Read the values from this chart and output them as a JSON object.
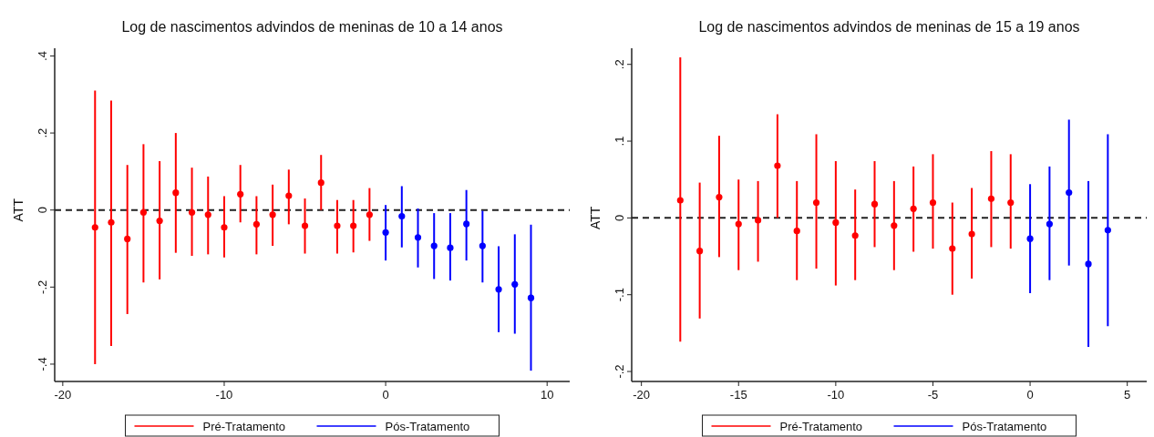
{
  "chart_data": [
    {
      "type": "scatter",
      "title": "Log de nascimentos advindos de meninas de 10 a 14 anos",
      "ylabel": "ATT",
      "marker": "circle",
      "legend": "bottom",
      "xlim": [
        -20.5,
        11.4
      ],
      "xticks": [
        -20,
        -10,
        0,
        10
      ],
      "ylim": [
        -0.445,
        0.42
      ],
      "yticks": [
        {
          "value": -0.4,
          "label": "-.4"
        },
        {
          "value": -0.2,
          "label": "-.2"
        },
        0,
        {
          "value": 0.2,
          "label": ".2"
        },
        {
          "value": 0.4,
          "label": ".4"
        }
      ],
      "ref_lines": [
        {
          "axis": "y",
          "value": 0,
          "line_style": "dashed",
          "color": "#222222"
        }
      ],
      "series": [
        {
          "name": "Pré-Tratamento",
          "color": "#ff0000",
          "x": [
            -18,
            -17,
            -16,
            -15,
            -14,
            -13,
            -12,
            -11,
            -10,
            -9,
            -8,
            -7,
            -6,
            -5,
            -4,
            -3,
            -2,
            -1
          ],
          "values": [
            -0.045,
            -0.032,
            -0.075,
            -0.006,
            -0.028,
            0.045,
            -0.006,
            -0.012,
            -0.045,
            0.041,
            -0.037,
            -0.012,
            0.037,
            -0.041,
            0.071,
            -0.041,
            -0.041,
            -0.012
          ],
          "errors": [
            [
              -0.4,
              0.31
            ],
            [
              -0.353,
              0.284
            ],
            [
              -0.27,
              0.117
            ],
            [
              -0.188,
              0.171
            ],
            [
              -0.18,
              0.127
            ],
            [
              -0.111,
              0.2
            ],
            [
              -0.119,
              0.11
            ],
            [
              -0.115,
              0.087
            ],
            [
              -0.123,
              0.036
            ],
            [
              -0.032,
              0.117
            ],
            [
              -0.115,
              0.036
            ],
            [
              -0.093,
              0.066
            ],
            [
              -0.037,
              0.105
            ],
            [
              -0.113,
              0.03
            ],
            [
              0,
              0.143
            ],
            [
              -0.113,
              0.026
            ],
            [
              -0.11,
              0.026
            ],
            [
              -0.08,
              0.057
            ]
          ]
        },
        {
          "name": "Pós-Tratamento",
          "color": "#0000ff",
          "x": [
            0,
            1,
            2,
            3,
            4,
            5,
            6,
            7,
            8,
            9
          ],
          "values": [
            -0.058,
            -0.016,
            -0.071,
            -0.093,
            -0.098,
            -0.036,
            -0.093,
            -0.206,
            -0.193,
            -0.228
          ],
          "errors": [
            [
              -0.131,
              0.013
            ],
            [
              -0.097,
              0.062
            ],
            [
              -0.149,
              0.004
            ],
            [
              -0.179,
              -0.008
            ],
            [
              -0.183,
              -0.008
            ],
            [
              -0.131,
              0.052
            ],
            [
              -0.188,
              -0.002
            ],
            [
              -0.317,
              -0.094
            ],
            [
              -0.321,
              -0.063
            ],
            [
              -0.417,
              -0.038
            ]
          ]
        }
      ]
    },
    {
      "type": "scatter",
      "title": "Log de nascimentos advindos de meninas de 15 a 19 anos",
      "ylabel": "ATT",
      "marker": "circle",
      "legend": "bottom",
      "xlim": [
        -20.5,
        6
      ],
      "xticks": [
        -20,
        -15,
        -10,
        -5,
        0,
        5
      ],
      "ylim": [
        -0.213,
        0.221
      ],
      "yticks": [
        {
          "value": -0.2,
          "label": "-.2"
        },
        {
          "value": -0.1,
          "label": "-.1"
        },
        0,
        {
          "value": 0.1,
          "label": ".1"
        },
        {
          "value": 0.2,
          "label": ".2"
        }
      ],
      "ref_lines": [
        {
          "axis": "y",
          "value": 0,
          "line_style": "dashed",
          "color": "#222222"
        }
      ],
      "series": [
        {
          "name": "Pré-Tratamento",
          "color": "#ff0000",
          "x": [
            -18,
            -17,
            -16,
            -15,
            -14,
            -13,
            -12,
            -11,
            -10,
            -9,
            -8,
            -7,
            -6,
            -5,
            -4,
            -3,
            -2,
            -1
          ],
          "values": [
            0.023,
            -0.043,
            0.027,
            -0.008,
            -0.003,
            0.068,
            -0.017,
            0.02,
            -0.006,
            -0.023,
            0.018,
            -0.01,
            0.012,
            0.02,
            -0.04,
            -0.021,
            0.025,
            0.02
          ],
          "errors": [
            [
              -0.161,
              0.209
            ],
            [
              -0.131,
              0.046
            ],
            [
              -0.051,
              0.107
            ],
            [
              -0.068,
              0.05
            ],
            [
              -0.057,
              0.048
            ],
            [
              0,
              0.135
            ],
            [
              -0.081,
              0.048
            ],
            [
              -0.066,
              0.109
            ],
            [
              -0.088,
              0.074
            ],
            [
              -0.081,
              0.037
            ],
            [
              -0.038,
              0.074
            ],
            [
              -0.068,
              0.048
            ],
            [
              -0.044,
              0.067
            ],
            [
              -0.04,
              0.083
            ],
            [
              -0.1,
              0.02
            ],
            [
              -0.079,
              0.039
            ],
            [
              -0.038,
              0.087
            ],
            [
              -0.04,
              0.083
            ]
          ]
        },
        {
          "name": "Pós-Tratamento",
          "color": "#0000ff",
          "x": [
            0,
            1,
            2,
            3,
            4
          ],
          "values": [
            -0.027,
            -0.008,
            0.033,
            -0.06,
            -0.016
          ],
          "errors": [
            [
              -0.098,
              0.044
            ],
            [
              -0.081,
              0.067
            ],
            [
              -0.062,
              0.128
            ],
            [
              -0.168,
              0.048
            ],
            [
              -0.141,
              0.109
            ]
          ]
        }
      ]
    }
  ]
}
